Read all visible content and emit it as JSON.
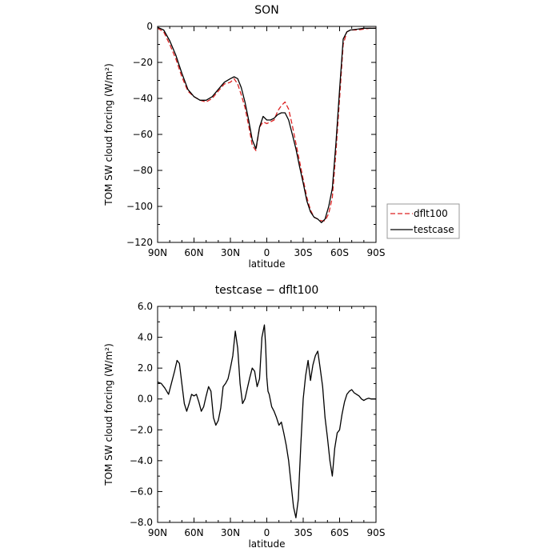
{
  "chart_data": [
    {
      "type": "line",
      "title": "SON",
      "xlabel": "latitude",
      "ylabel": "TOM SW cloud forcing (W/m²)",
      "xlim": [
        90,
        -90
      ],
      "ylim": [
        -120,
        0
      ],
      "x_ticks": [
        90,
        60,
        30,
        0,
        -30,
        -60,
        -90
      ],
      "x_tick_labels": [
        "90N",
        "60N",
        "30N",
        "0",
        "30S",
        "60S",
        "90S"
      ],
      "y_ticks": [
        0,
        -20,
        -40,
        -60,
        -80,
        -100,
        -120
      ],
      "y_tick_labels": [
        "0",
        "−20",
        "−40",
        "−60",
        "−80",
        "−100",
        "−120"
      ],
      "legend": {
        "placement": "right",
        "entries": [
          {
            "label": "dflt100",
            "color": "#dd2222",
            "dash": "dashed"
          },
          {
            "label": "testcase",
            "color": "#000000",
            "dash": "solid"
          }
        ]
      },
      "series": [
        {
          "name": "dflt100",
          "color": "#dd2222",
          "dash": "dashed",
          "x": [
            90,
            85,
            80,
            75,
            70,
            65,
            60,
            55,
            50,
            45,
            40,
            35,
            30,
            27,
            24,
            21,
            18,
            15,
            12,
            9,
            6,
            3,
            0,
            -3,
            -6,
            -9,
            -12,
            -15,
            -18,
            -21,
            -24,
            -27,
            -30,
            -33,
            -36,
            -39,
            -42,
            -45,
            -48,
            -51,
            -54,
            -57,
            -60,
            -63,
            -66,
            -69,
            -75,
            -80,
            -85,
            -90
          ],
          "y": [
            -1,
            -3,
            -10,
            -18,
            -28,
            -36,
            -39,
            -41,
            -42,
            -40,
            -36,
            -32,
            -31,
            -29,
            -32,
            -38,
            -45,
            -55,
            -66,
            -69,
            -56,
            -53,
            -54,
            -53,
            -52,
            -47,
            -44,
            -42,
            -46,
            -55,
            -65,
            -75,
            -85,
            -95,
            -102,
            -106,
            -107,
            -108,
            -108,
            -104,
            -95,
            -70,
            -40,
            -10,
            -3,
            -2,
            -2,
            -1.5,
            -1,
            -1
          ]
        },
        {
          "name": "testcase",
          "color": "#000000",
          "dash": "solid",
          "x": [
            90,
            85,
            80,
            75,
            70,
            65,
            60,
            55,
            50,
            45,
            40,
            35,
            30,
            27,
            24,
            21,
            18,
            15,
            12,
            9,
            6,
            3,
            0,
            -3,
            -6,
            -9,
            -12,
            -15,
            -18,
            -21,
            -24,
            -27,
            -30,
            -33,
            -36,
            -39,
            -42,
            -45,
            -48,
            -51,
            -54,
            -57,
            -60,
            -63,
            -66,
            -69,
            -75,
            -80,
            -85,
            -90
          ],
          "y": [
            -0.5,
            -2,
            -8,
            -16,
            -26,
            -35,
            -39,
            -41,
            -41,
            -39,
            -35,
            -31,
            -29,
            -28,
            -29,
            -34,
            -42,
            -52,
            -63,
            -68,
            -56,
            -50,
            -52,
            -52,
            -51,
            -49,
            -48,
            -48,
            -52,
            -60,
            -68,
            -78,
            -87,
            -97,
            -103,
            -106,
            -107,
            -109,
            -107,
            -100,
            -90,
            -65,
            -35,
            -7,
            -3,
            -2,
            -1.5,
            -1,
            -1,
            -1
          ]
        }
      ]
    },
    {
      "type": "line",
      "title": "testcase − dflt100",
      "xlabel": "latitude",
      "ylabel": "TOM SW cloud forcing (W/m²)",
      "xlim": [
        90,
        -90
      ],
      "ylim": [
        -8,
        6
      ],
      "x_ticks": [
        90,
        60,
        30,
        0,
        -30,
        -60,
        -90
      ],
      "x_tick_labels": [
        "90N",
        "60N",
        "30N",
        "0",
        "30S",
        "60S",
        "90S"
      ],
      "y_ticks": [
        6,
        4,
        2,
        0,
        -2,
        -4,
        -6,
        -8
      ],
      "y_tick_labels": [
        "6.0",
        "4.0",
        "2.0",
        "0.0",
        "−2.0",
        "−4.0",
        "−6.0",
        "−8.0"
      ],
      "series": [
        {
          "name": "testcase − dflt100",
          "color": "#000000",
          "dash": "solid",
          "x": [
            90,
            87,
            84,
            81,
            78,
            76,
            74,
            72,
            70,
            68,
            66,
            64,
            62,
            60,
            58,
            56,
            54,
            52,
            50,
            48,
            46,
            44,
            42,
            40,
            38,
            36,
            34,
            32,
            30,
            28,
            26,
            24,
            22,
            20,
            18,
            16,
            14,
            12,
            10,
            8,
            6,
            4,
            2,
            1,
            0,
            -1,
            -2,
            -4,
            -6,
            -8,
            -10,
            -12,
            -14,
            -16,
            -18,
            -20,
            -22,
            -24,
            -26,
            -28,
            -30,
            -32,
            -34,
            -36,
            -38,
            -40,
            -42,
            -44,
            -46,
            -48,
            -50,
            -52,
            -54,
            -56,
            -58,
            -60,
            -62,
            -64,
            -66,
            -68,
            -70,
            -72,
            -74,
            -76,
            -78,
            -80,
            -82,
            -84,
            -86,
            -88,
            -90
          ],
          "y": [
            1.1,
            1.0,
            0.7,
            0.3,
            1.2,
            1.8,
            2.5,
            2.3,
            1.0,
            -0.3,
            -0.8,
            -0.3,
            0.3,
            0.2,
            0.3,
            -0.2,
            -0.8,
            -0.5,
            0.2,
            0.8,
            0.5,
            -1.2,
            -1.7,
            -1.4,
            -0.6,
            0.8,
            1.0,
            1.3,
            2.0,
            2.8,
            4.4,
            3.3,
            1.0,
            -0.3,
            0.0,
            0.7,
            1.4,
            2.0,
            1.8,
            0.8,
            1.3,
            4.0,
            4.8,
            3.5,
            1.4,
            0.5,
            0.3,
            -0.5,
            -0.8,
            -1.2,
            -1.7,
            -1.5,
            -2.2,
            -3.0,
            -4.0,
            -5.5,
            -7.0,
            -7.7,
            -6.5,
            -3.0,
            0.0,
            1.5,
            2.5,
            1.2,
            2.2,
            2.8,
            3.1,
            2.0,
            0.8,
            -1.2,
            -2.5,
            -4.0,
            -5.0,
            -3.2,
            -2.2,
            -2.0,
            -1.0,
            -0.2,
            0.3,
            0.5,
            0.6,
            0.4,
            0.3,
            0.2,
            0.0,
            -0.1,
            0.0,
            0.05,
            0.0,
            0.0,
            0.0
          ]
        }
      ]
    }
  ]
}
